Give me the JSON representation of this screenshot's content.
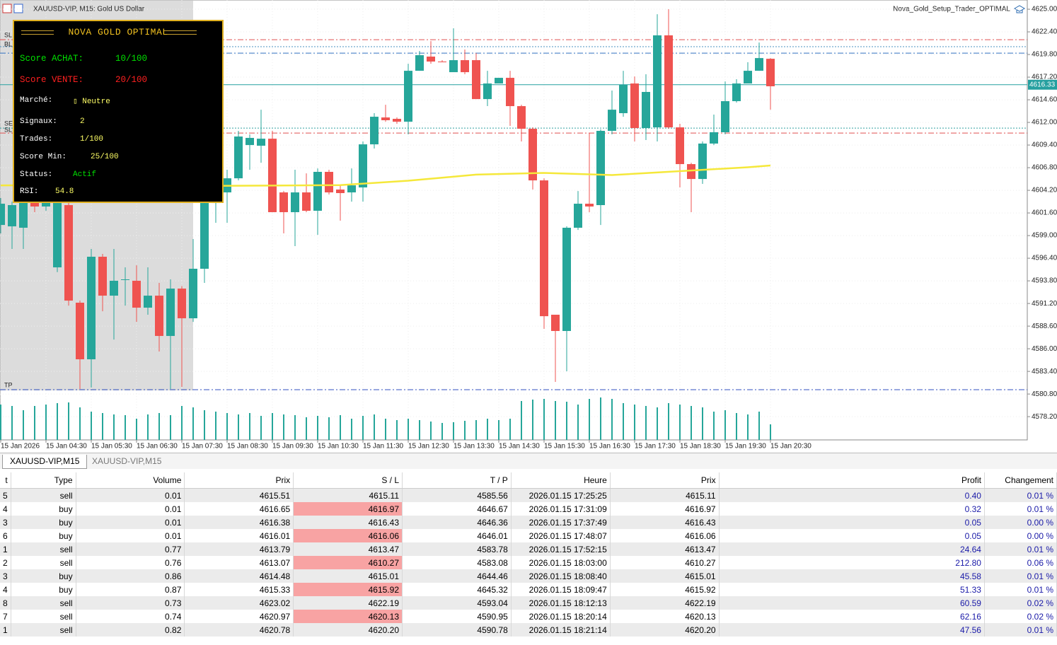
{
  "chart_data": {
    "type": "candlestick",
    "title": "XAUUSD-VIP, M15:  Gold US Dollar",
    "expert": "Nova_Gold_Setup_Trader_OPTIMAL",
    "left_labels": [
      "SL",
      "BL",
      "SE",
      "SL",
      "TP"
    ],
    "categories": [
      "15 Jan 2026",
      null,
      null,
      null,
      "15 Jan 04:30",
      null,
      null,
      null,
      "15 Jan 05:30",
      null,
      null,
      null,
      "15 Jan 06:30",
      null,
      null,
      null,
      "15 Jan 07:30",
      null,
      null,
      null,
      "15 Jan 08:30",
      null,
      null,
      null,
      "15 Jan 09:30",
      null,
      null,
      null,
      "15 Jan 10:30",
      null,
      null,
      null,
      "15 Jan 11:30",
      null,
      null,
      null,
      "15 Jan 12:30",
      null,
      null,
      null,
      "15 Jan 13:30",
      null,
      null,
      null,
      "15 Jan 14:30",
      null,
      null,
      null,
      "15 Jan 15:30",
      null,
      null,
      null,
      "15 Jan 16:30",
      null,
      null,
      null,
      "15 Jan 17:30",
      null,
      null,
      null,
      "15 Jan 18:30",
      null,
      null,
      null,
      "15 Jan 19:30",
      null,
      null,
      null,
      "15 Jan 20:30"
    ],
    "open": [
      4600.22,
      4600.06,
      4599.9,
      4603.96,
      4602.34,
      4595.35,
      4602.5,
      4591.29,
      4584.79,
      4596.57,
      4592.1,
      4593.89,
      4593.81,
      4590.72,
      4592.1,
      4587.47,
      4592.91,
      4589.5,
      4595.19,
      4602.74,
      4603.96,
      4605.58,
      4609.4,
      4609.32,
      4610.13,
      4603.96,
      4601.69,
      4603.96,
      4601.85,
      4606.32,
      4604.29,
      4603.96,
      4604.53,
      4609.48,
      4612.57,
      4612.41,
      4612.08,
      4617.93,
      4619.56,
      4618.99,
      4617.77,
      4619.15,
      4619.15,
      4614.68,
      4616.47,
      4617.12,
      4613.87,
      4611.27,
      4605.34,
      4589.91,
      4588.04,
      4599.9,
      4602.66,
      4602.5,
      4611.03,
      4613.06,
      4616.47,
      4611.35,
      4611.43,
      4622.0,
      4611.43,
      4607.21,
      4605.5,
      4609.57,
      4610.87,
      4614.44,
      4616.47,
      4617.93,
      4619.31
    ],
    "high": [
      4603.31,
      4602.9,
      4603.31,
      4604.77,
      4604.94,
      4604.0,
      4603.31,
      4591.53,
      4597.46,
      4596.9,
      4597.46,
      4595.35,
      4595.59,
      4595.35,
      4593.56,
      4593.97,
      4593.2,
      4598.6,
      4602.9,
      4605.8,
      4606.56,
      4611.03,
      4610.62,
      4613.46,
      4611.03,
      4604.12,
      4606.56,
      4606.15,
      4606.72,
      4606.56,
      4604.77,
      4606.72,
      4609.81,
      4613.06,
      4614.03,
      4612.57,
      4618.74,
      4620.21,
      4621.34,
      4619.15,
      4622.81,
      4620.37,
      4619.96,
      4617.93,
      4617.12,
      4617.93,
      4614.03,
      4611.43,
      4605.58,
      4589.91,
      4600.06,
      4604.12,
      4610.78,
      4611.19,
      4615.66,
      4617.93,
      4617.28,
      4617.53,
      4624.43,
      4625.0,
      4611.84,
      4607.37,
      4609.81,
      4612.9,
      4616.71,
      4616.96,
      4618.91,
      4621.18,
      4619.39
    ],
    "low": [
      4599.25,
      4597.46,
      4597.46,
      4601.69,
      4601.85,
      4594.8,
      4590.96,
      4581.38,
      4581.54,
      4590.31,
      4587.06,
      4590.96,
      4589.09,
      4589.91,
      4585.68,
      4581.38,
      4581.62,
      4589.09,
      4593.56,
      4600.47,
      4600.47,
      4605.34,
      4606.56,
      4607.37,
      4601.69,
      4599.25,
      4597.79,
      4601.69,
      4599.09,
      4603.72,
      4600.71,
      4602.9,
      4602.9,
      4609.0,
      4612.08,
      4611.84,
      4610.62,
      4617.93,
      4618.74,
      4618.91,
      4617.77,
      4617.53,
      4614.68,
      4613.87,
      4616.47,
      4611.6,
      4609.81,
      4604.29,
      4588.28,
      4582.19,
      4583.41,
      4599.65,
      4601.69,
      4600.22,
      4610.62,
      4612.65,
      4609.81,
      4609.97,
      4609.81,
      4611.27,
      4604.53,
      4601.69,
      4604.94,
      4609.4,
      4610.62,
      4614.28,
      4616.47,
      4617.93,
      4613.46
    ],
    "close": [
      4602.66,
      4602.5,
      4602.9,
      4602.34,
      4603.96,
      4602.74,
      4591.53,
      4584.79,
      4596.57,
      4592.1,
      4593.81,
      4593.97,
      4590.72,
      4592.1,
      4587.47,
      4592.91,
      4589.5,
      4595.19,
      4602.74,
      4605.34,
      4605.58,
      4610.38,
      4610.22,
      4610.13,
      4601.69,
      4601.69,
      4603.96,
      4601.85,
      4606.32,
      4603.96,
      4603.88,
      4604.77,
      4609.48,
      4612.65,
      4612.25,
      4612.08,
      4617.93,
      4619.72,
      4618.99,
      4618.91,
      4619.15,
      4617.77,
      4614.68,
      4616.47,
      4617.12,
      4613.87,
      4611.27,
      4605.34,
      4589.74,
      4588.04,
      4599.9,
      4602.66,
      4602.34,
      4611.03,
      4613.46,
      4616.31,
      4611.35,
      4615.5,
      4622.0,
      4611.43,
      4607.21,
      4605.5,
      4609.57,
      4610.87,
      4614.44,
      4616.47,
      4617.93,
      4619.39,
      4616.15
    ],
    "up_color": "#26a69a",
    "down_color": "#ef5350",
    "volume": {
      "color": "#26a69a",
      "values": [
        50,
        48,
        42,
        48,
        50,
        52,
        53,
        46,
        40,
        38,
        36,
        35,
        30,
        36,
        38,
        35,
        48,
        46,
        42,
        40,
        38,
        36,
        38,
        34,
        38,
        36,
        35,
        32,
        34,
        32,
        35,
        30,
        34,
        36,
        30,
        28,
        30,
        28,
        26,
        24,
        25,
        27,
        28,
        30,
        28,
        30,
        55,
        57,
        58,
        55,
        54,
        50,
        58,
        60,
        58,
        52,
        50,
        48,
        46,
        52,
        50,
        48,
        46,
        40,
        42,
        38,
        36,
        40,
        22
      ]
    },
    "moving_average": {
      "color": "#f5e83a",
      "x": [
        0,
        6,
        12,
        18,
        24,
        30,
        36,
        42,
        48,
        54,
        60,
        66,
        68
      ],
      "values": [
        4604.77,
        4604.8,
        4604.75,
        4604.7,
        4604.75,
        4604.8,
        4605.3,
        4606.0,
        4606.2,
        4605.95,
        4606.4,
        4606.85,
        4607.05
      ]
    },
    "levels": [
      {
        "value": 4621.5,
        "color": "#e05050",
        "dash": "8 3 2 3"
      },
      {
        "value": 4620.7,
        "color": "#4a90c0",
        "dash": "2 2"
      },
      {
        "value": 4619.96,
        "color": "#3070c0",
        "dash": "8 3 2 3"
      },
      {
        "value": 4611.35,
        "color": "#30a0a0",
        "dash": "2 2"
      },
      {
        "value": 4610.78,
        "color": "#e05050",
        "dash": "8 3 2 3"
      },
      {
        "value": 4581.3,
        "color": "#3050c0",
        "dash": "8 3 2 3"
      }
    ],
    "last_price": 4616.33,
    "last_price_color": "#26a0a0",
    "ylim": [
      4575.53,
      4626.06
    ],
    "yticks": [
      {
        "value": 4625.0,
        "label": "4625.00"
      },
      {
        "value": 4622.4,
        "label": "4622.40"
      },
      {
        "value": 4619.8,
        "label": "4619.80"
      },
      {
        "value": 4617.2,
        "label": "4617.20"
      },
      {
        "value": 4614.6,
        "label": "4614.60"
      },
      {
        "value": 4612.0,
        "label": "4612.00"
      },
      {
        "value": 4609.4,
        "label": "4609.40"
      },
      {
        "value": 4606.8,
        "label": "4606.80"
      },
      {
        "value": 4604.2,
        "label": "4604.20"
      },
      {
        "value": 4601.6,
        "label": "4601.60"
      },
      {
        "value": 4599.0,
        "label": "4599.00"
      },
      {
        "value": 4596.4,
        "label": "4596.40"
      },
      {
        "value": 4593.8,
        "label": "4593.80"
      },
      {
        "value": 4591.2,
        "label": "4591.20"
      },
      {
        "value": 4588.6,
        "label": "4588.60"
      },
      {
        "value": 4586.0,
        "label": "4586.00"
      },
      {
        "value": 4583.4,
        "label": "4583.40"
      },
      {
        "value": 4580.8,
        "label": "4580.80"
      },
      {
        "value": 4578.2,
        "label": "4578.20"
      }
    ],
    "grid": true
  },
  "panel": {
    "title": "NOVA GOLD OPTIMAL",
    "rows": [
      {
        "label": "Score ACHAT:",
        "value": "10/100"
      },
      {
        "label": "Score VENTE:",
        "value": "20/100"
      },
      {
        "label": "Marché:",
        "value": "▯ Neutre"
      },
      {
        "label": "Signaux:",
        "value": "2"
      },
      {
        "label": "Trades:",
        "value": "1/100"
      },
      {
        "label": "Score Min:",
        "value": "25/100"
      },
      {
        "label": "Status:",
        "value": "Actif"
      },
      {
        "label": "RSI:",
        "value": "54.8"
      }
    ]
  },
  "tabs": [
    "XAUUSD-VIP,M15",
    "XAUUSD-VIP,M15"
  ],
  "table": {
    "columns": [
      "t",
      "Type",
      "Volume",
      "Prix",
      "S / L",
      "T / P",
      "Heure",
      "Prix",
      "Profit",
      "Changement"
    ],
    "rows": [
      [
        "5",
        "sell",
        "0.01",
        "4615.51",
        "4615.11",
        "4585.56",
        "2026.01.15 17:25:25",
        "4615.11",
        "0.40",
        "0.01 %"
      ],
      [
        "4",
        "buy",
        "0.01",
        "4616.65",
        "4616.97",
        "4646.67",
        "2026.01.15 17:31:09",
        "4616.97",
        "0.32",
        "0.01 %"
      ],
      [
        "3",
        "buy",
        "0.01",
        "4616.38",
        "4616.43",
        "4646.36",
        "2026.01.15 17:37:49",
        "4616.43",
        "0.05",
        "0.00 %"
      ],
      [
        "6",
        "buy",
        "0.01",
        "4616.01",
        "4616.06",
        "4646.01",
        "2026.01.15 17:48:07",
        "4616.06",
        "0.05",
        "0.00 %"
      ],
      [
        "1",
        "sell",
        "0.77",
        "4613.79",
        "4613.47",
        "4583.78",
        "2026.01.15 17:52:15",
        "4613.47",
        "24.64",
        "0.01 %"
      ],
      [
        "2",
        "sell",
        "0.76",
        "4613.07",
        "4610.27",
        "4583.08",
        "2026.01.15 18:03:00",
        "4610.27",
        "212.80",
        "0.06 %"
      ],
      [
        "3",
        "buy",
        "0.86",
        "4614.48",
        "4615.01",
        "4644.46",
        "2026.01.15 18:08:40",
        "4615.01",
        "45.58",
        "0.01 %"
      ],
      [
        "4",
        "buy",
        "0.87",
        "4615.33",
        "4615.92",
        "4645.32",
        "2026.01.15 18:09:47",
        "4615.92",
        "51.33",
        "0.01 %"
      ],
      [
        "8",
        "sell",
        "0.73",
        "4623.02",
        "4622.19",
        "4593.04",
        "2026.01.15 18:12:13",
        "4622.19",
        "60.59",
        "0.02 %"
      ],
      [
        "7",
        "sell",
        "0.74",
        "4620.97",
        "4620.13",
        "4590.95",
        "2026.01.15 18:20:14",
        "4620.13",
        "62.16",
        "0.02 %"
      ],
      [
        "1",
        "sell",
        "0.82",
        "4620.78",
        "4620.20",
        "4590.78",
        "2026.01.15 18:21:14",
        "4620.20",
        "47.56",
        "0.01 %"
      ]
    ]
  }
}
